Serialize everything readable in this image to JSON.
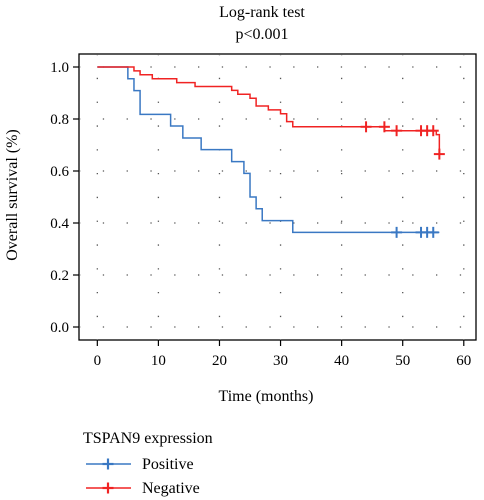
{
  "chart_data": {
    "type": "line",
    "title": "Log-rank test",
    "subtitle": "p<0.001",
    "xlabel": "Time (months)",
    "ylabel": "Overall survival (%)",
    "xlim": [
      -3,
      62
    ],
    "ylim": [
      -0.05,
      1.05
    ],
    "xticks": [
      "0",
      "10",
      "20",
      "30",
      "40",
      "50",
      "60"
    ],
    "yticks": [
      "0.0",
      "0.2",
      "0.4",
      "0.6",
      "0.8",
      "1.0"
    ],
    "grid": true,
    "legend": {
      "title": "TSPAN9 expression",
      "placement": "bottom-left"
    },
    "series": [
      {
        "name": "Positive",
        "color": "#3a78c3",
        "step": [
          [
            0,
            1.0
          ],
          [
            5,
            1.0
          ],
          [
            5,
            0.955
          ],
          [
            6,
            0.955
          ],
          [
            6,
            0.909
          ],
          [
            7,
            0.909
          ],
          [
            7,
            0.818
          ],
          [
            12,
            0.818
          ],
          [
            12,
            0.773
          ],
          [
            14,
            0.773
          ],
          [
            14,
            0.727
          ],
          [
            17,
            0.727
          ],
          [
            17,
            0.682
          ],
          [
            22,
            0.682
          ],
          [
            22,
            0.636
          ],
          [
            24,
            0.636
          ],
          [
            24,
            0.591
          ],
          [
            25,
            0.591
          ],
          [
            25,
            0.5
          ],
          [
            26,
            0.5
          ],
          [
            26,
            0.455
          ],
          [
            27,
            0.455
          ],
          [
            27,
            0.409
          ],
          [
            29,
            0.409
          ],
          [
            29,
            0.409
          ],
          [
            32,
            0.409
          ],
          [
            32,
            0.364
          ],
          [
            56,
            0.364
          ]
        ],
        "censored": [
          [
            49,
            0.364
          ],
          [
            53,
            0.364
          ],
          [
            54,
            0.364
          ],
          [
            55,
            0.364
          ]
        ]
      },
      {
        "name": "Negative",
        "color": "#f02323",
        "step": [
          [
            0,
            1.0
          ],
          [
            6,
            1.0
          ],
          [
            6,
            0.985
          ],
          [
            7,
            0.985
          ],
          [
            7,
            0.97
          ],
          [
            9,
            0.97
          ],
          [
            9,
            0.955
          ],
          [
            13,
            0.955
          ],
          [
            13,
            0.94
          ],
          [
            16,
            0.94
          ],
          [
            16,
            0.925
          ],
          [
            22,
            0.925
          ],
          [
            22,
            0.91
          ],
          [
            23,
            0.91
          ],
          [
            23,
            0.895
          ],
          [
            25,
            0.895
          ],
          [
            25,
            0.88
          ],
          [
            26,
            0.88
          ],
          [
            26,
            0.85
          ],
          [
            28,
            0.85
          ],
          [
            28,
            0.835
          ],
          [
            30,
            0.835
          ],
          [
            30,
            0.82
          ],
          [
            31,
            0.82
          ],
          [
            31,
            0.79
          ],
          [
            32,
            0.79
          ],
          [
            32,
            0.77
          ],
          [
            47,
            0.77
          ],
          [
            47,
            0.755
          ],
          [
            55.5,
            0.755
          ],
          [
            55.5,
            0.74
          ],
          [
            56,
            0.74
          ],
          [
            56,
            0.665
          ]
        ],
        "censored": [
          [
            44,
            0.77
          ],
          [
            47,
            0.77
          ],
          [
            49,
            0.755
          ],
          [
            53,
            0.755
          ],
          [
            54,
            0.755
          ],
          [
            55,
            0.755
          ],
          [
            56,
            0.665
          ]
        ]
      }
    ]
  }
}
